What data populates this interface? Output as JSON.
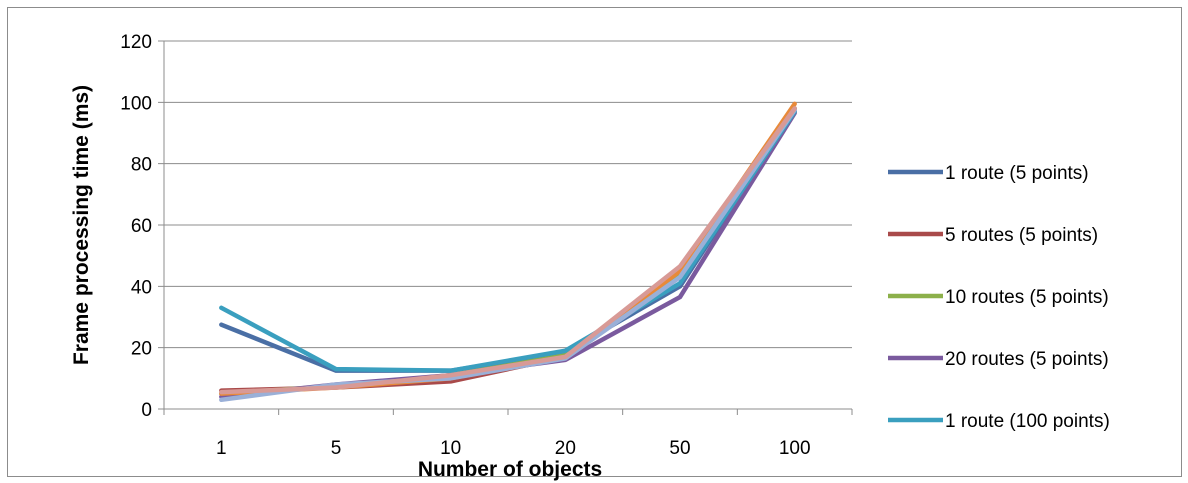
{
  "chart_data": {
    "type": "line",
    "categories": [
      "1",
      "5",
      "10",
      "20",
      "50",
      "100"
    ],
    "xlabel": "Number of objects",
    "ylabel": "Frame processing time (ms)",
    "ylim": [
      0,
      120
    ],
    "yticks": [
      0,
      20,
      40,
      60,
      80,
      100,
      120
    ],
    "grid": true,
    "legend_position": "right",
    "series": [
      {
        "name": "1 route (5 points)",
        "color": "#4a6fa5",
        "values": [
          27.5,
          12.5,
          12.5,
          18.5,
          40,
          97
        ],
        "in_legend": true
      },
      {
        "name": "5 routes (5 points)",
        "color": "#a94a4a",
        "values": [
          6,
          7,
          9,
          17,
          44,
          98
        ],
        "in_legend": true
      },
      {
        "name": "10 routes (5 points)",
        "color": "#8cb04a",
        "values": [
          5,
          7.5,
          11,
          17.5,
          44,
          98
        ],
        "in_legend": true
      },
      {
        "name": "20 routes (5 points)",
        "color": "#7a5a9e",
        "values": [
          4,
          8,
          11,
          16,
          36.5,
          96.5
        ],
        "in_legend": true
      },
      {
        "name": "1 route (100 points)",
        "color": "#3a9fbf",
        "values": [
          33,
          13,
          12.5,
          19,
          41,
          97
        ],
        "in_legend": true
      },
      {
        "name": "",
        "color": "#e88a3a",
        "values": [
          5,
          7,
          10,
          17,
          45,
          99.5
        ],
        "in_legend": false
      },
      {
        "name": "",
        "color": "#9ab0d8",
        "values": [
          3,
          8,
          10,
          16.5,
          43,
          97.5
        ],
        "in_legend": false
      },
      {
        "name": "",
        "color": "#d89a96",
        "values": [
          5.5,
          7,
          11,
          17,
          46.5,
          98
        ],
        "in_legend": false
      }
    ]
  }
}
